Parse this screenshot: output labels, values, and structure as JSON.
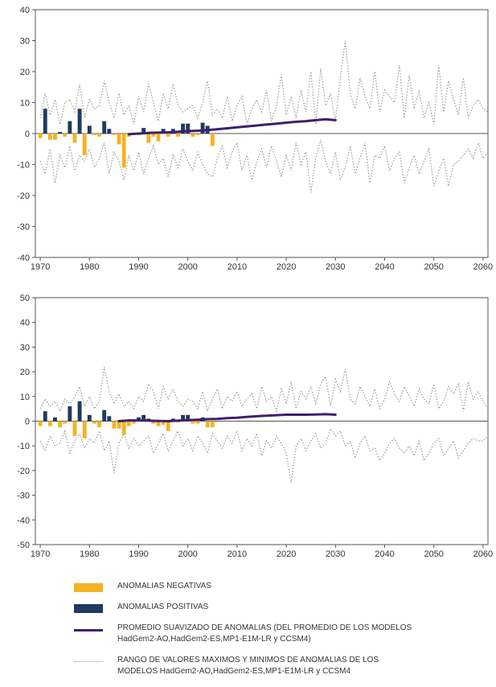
{
  "colors": {
    "negative": "#f4b324",
    "positive": "#1f3b5e",
    "smooth": "#3f1f6e",
    "range": "#9a9a9a",
    "axis": "#555555"
  },
  "legend": {
    "negative": "ANOMALIAS NEGATIVAS",
    "positive": "ANOMALIAS POSITIVAS",
    "smooth_line1": "PROMEDIO SUAVIZADO DE ANOMALIAS (DEL PROMEDIO DE LOS MODELOS",
    "smooth_line2": "HadGem2-AO,HadGem2-ES,MP1-E1M-LR y CCSM4)",
    "range_line1": "RANGO DE VALORES MAXIMOS Y MINIMOS DE ANOMALIAS DE LOS",
    "range_line2": "MODELOS HadGem2-AO,HadGem2-ES,MP1-E1M-LR y CCSM4"
  },
  "chart_data": [
    {
      "type": "bar",
      "xlim": [
        1969,
        2061
      ],
      "ylim": [
        -40,
        40
      ],
      "xticks": [
        1970,
        1980,
        1990,
        2000,
        2010,
        2020,
        2030,
        2040,
        2050,
        2060
      ],
      "yticks": [
        -40,
        -30,
        -20,
        -10,
        0,
        10,
        20,
        30,
        40
      ],
      "anomaly_years": [
        1970,
        1971,
        1972,
        1973,
        1974,
        1975,
        1976,
        1977,
        1978,
        1979,
        1980,
        1981,
        1982,
        1983,
        1984,
        1985,
        1986,
        1987,
        1988,
        1989,
        1990,
        1991,
        1992,
        1993,
        1994,
        1995,
        1996,
        1997,
        1998,
        1999,
        2000,
        2001,
        2002,
        2003,
        2004,
        2005
      ],
      "anomalies": [
        -1.5,
        8,
        -2,
        -2,
        0.5,
        -1,
        4,
        -3,
        8,
        -7,
        2.5,
        -0.5,
        -1,
        4,
        1.5,
        -0.5,
        -3.5,
        -11,
        -1,
        -0.5,
        -0.5,
        1.8,
        -3,
        -1,
        -2.5,
        1.5,
        -1,
        1.5,
        -1,
        3.2,
        3.2,
        -1,
        -0.5,
        3.5,
        2.5,
        -4
      ],
      "smooth": {
        "x": [
          1988,
          1990,
          1992,
          1994,
          1996,
          1998,
          2000,
          2002,
          2004,
          2006,
          2008,
          2010,
          2012,
          2014,
          2016,
          2018,
          2020,
          2022,
          2024,
          2026,
          2028,
          2030
        ],
        "y": [
          -0.2,
          0,
          0.2,
          0.3,
          0.4,
          0.6,
          0.8,
          0.9,
          1.1,
          1.4,
          1.7,
          2.0,
          2.3,
          2.6,
          2.9,
          3.2,
          3.5,
          3.8,
          4.0,
          4.3,
          4.6,
          4.3
        ]
      },
      "range_max": {
        "x": [
          1970,
          1971,
          1972,
          1973,
          1974,
          1975,
          1976,
          1977,
          1978,
          1979,
          1980,
          1981,
          1982,
          1983,
          1984,
          1985,
          1986,
          1987,
          1988,
          1989,
          1990,
          1991,
          1992,
          1993,
          1994,
          1995,
          1996,
          1997,
          1998,
          1999,
          2000,
          2001,
          2002,
          2003,
          2004,
          2005,
          2006,
          2007,
          2008,
          2009,
          2010,
          2011,
          2012,
          2013,
          2014,
          2015,
          2016,
          2017,
          2018,
          2019,
          2020,
          2021,
          2022,
          2023,
          2024,
          2025,
          2026,
          2027,
          2028,
          2029,
          2030,
          2031,
          2032,
          2033,
          2034,
          2035,
          2036,
          2037,
          2038,
          2039,
          2040,
          2041,
          2042,
          2043,
          2044,
          2045,
          2046,
          2047,
          2048,
          2049,
          2050,
          2051,
          2052,
          2053,
          2054,
          2055,
          2056,
          2057,
          2058,
          2059,
          2060,
          2061
        ],
        "y": [
          5,
          13,
          6,
          11,
          3,
          10,
          11,
          7,
          16,
          5,
          11,
          8,
          9,
          17,
          10,
          5,
          13,
          6,
          9,
          3,
          12,
          7,
          16,
          10,
          4,
          13,
          8,
          16,
          9,
          7,
          8,
          9,
          5,
          10,
          17,
          6,
          8,
          5,
          12,
          4,
          9,
          12,
          3,
          8,
          11,
          7,
          14,
          4,
          9,
          19,
          6,
          12,
          5,
          14,
          7,
          20,
          3,
          21,
          9,
          13,
          4,
          18,
          30,
          13,
          8,
          18,
          12,
          8,
          20,
          7,
          14,
          12,
          10,
          22,
          5,
          19,
          8,
          14,
          5,
          10,
          3,
          22,
          7,
          17,
          11,
          6,
          18,
          5,
          9,
          11,
          8,
          7
        ]
      },
      "range_min": {
        "x": [
          1970,
          1971,
          1972,
          1973,
          1974,
          1975,
          1976,
          1977,
          1978,
          1979,
          1980,
          1981,
          1982,
          1983,
          1984,
          1985,
          1986,
          1987,
          1988,
          1989,
          1990,
          1991,
          1992,
          1993,
          1994,
          1995,
          1996,
          1997,
          1998,
          1999,
          2000,
          2001,
          2002,
          2003,
          2004,
          2005,
          2006,
          2007,
          2008,
          2009,
          2010,
          2011,
          2012,
          2013,
          2014,
          2015,
          2016,
          2017,
          2018,
          2019,
          2020,
          2021,
          2022,
          2023,
          2024,
          2025,
          2026,
          2027,
          2028,
          2029,
          2030,
          2031,
          2032,
          2033,
          2034,
          2035,
          2036,
          2037,
          2038,
          2039,
          2040,
          2041,
          2042,
          2043,
          2044,
          2045,
          2046,
          2047,
          2048,
          2049,
          2050,
          2051,
          2052,
          2053,
          2054,
          2055,
          2056,
          2057,
          2058,
          2059,
          2060,
          2061
        ],
        "y": [
          -9,
          -13,
          -5,
          -16,
          -7,
          -11,
          -4,
          -12,
          -7,
          -9,
          -5,
          -11,
          -8,
          -3,
          -13,
          -6,
          -9,
          -15,
          -7,
          -12,
          -6,
          -13,
          -8,
          -4,
          -10,
          -8,
          -14,
          -7,
          -11,
          -5,
          -9,
          -12,
          -6,
          -10,
          -13,
          -14,
          -8,
          -4,
          -11,
          -6,
          -3,
          -12,
          -7,
          -15,
          -9,
          -5,
          -11,
          -4,
          -9,
          -14,
          -7,
          -12,
          -3,
          -10,
          -6,
          -19,
          -8,
          -2,
          -9,
          -13,
          -6,
          -15,
          -11,
          -4,
          -13,
          -8,
          -3,
          -16,
          -7,
          -8,
          -4,
          -12,
          -8,
          -6,
          -16,
          -11,
          -7,
          -13,
          -9,
          -5,
          -17,
          -12,
          -8,
          -17,
          -10,
          -9,
          -7,
          -5,
          -8,
          -3,
          -8,
          -6
        ]
      }
    },
    {
      "type": "bar",
      "xlim": [
        1969,
        2061
      ],
      "ylim": [
        -50,
        50
      ],
      "xticks": [
        1970,
        1980,
        1990,
        2000,
        2010,
        2020,
        2030,
        2040,
        2050,
        2060
      ],
      "yticks": [
        -50,
        -40,
        -30,
        -20,
        -10,
        0,
        10,
        20,
        30,
        40,
        50
      ],
      "anomaly_years": [
        1970,
        1971,
        1972,
        1973,
        1974,
        1975,
        1976,
        1977,
        1978,
        1979,
        1980,
        1981,
        1982,
        1983,
        1984,
        1985,
        1986,
        1987,
        1988,
        1989,
        1990,
        1991,
        1992,
        1993,
        1994,
        1995,
        1996,
        1997,
        1998,
        1999,
        2000,
        2001,
        2002,
        2003,
        2004,
        2005
      ],
      "anomalies": [
        -2,
        4,
        -2,
        1.5,
        -2.5,
        -1,
        6,
        -6,
        8,
        -7,
        2.5,
        -1,
        -2.5,
        4.5,
        2,
        -3,
        -3,
        -5.5,
        -2,
        -1,
        1.5,
        2.5,
        1,
        -1,
        -2,
        -1.5,
        -4,
        1,
        -0.5,
        2.5,
        2.5,
        -1,
        -1,
        1.5,
        -2.5,
        -2.5
      ],
      "smooth": {
        "x": [
          1986,
          1988,
          1990,
          1992,
          1994,
          1996,
          1998,
          2000,
          2002,
          2004,
          2006,
          2008,
          2010,
          2012,
          2014,
          2016,
          2018,
          2020,
          2022,
          2024,
          2026,
          2028,
          2030
        ],
        "y": [
          0,
          0.3,
          0.3,
          0.2,
          0.1,
          0,
          0.2,
          0.4,
          0.6,
          0.8,
          0.9,
          1.2,
          1.4,
          1.7,
          2.0,
          2.2,
          2.4,
          2.6,
          2.6,
          2.6,
          2.7,
          2.8,
          2.6
        ]
      },
      "range_max": {
        "x": [
          1970,
          1971,
          1972,
          1973,
          1974,
          1975,
          1976,
          1977,
          1978,
          1979,
          1980,
          1981,
          1982,
          1983,
          1984,
          1985,
          1986,
          1987,
          1988,
          1989,
          1990,
          1991,
          1992,
          1993,
          1994,
          1995,
          1996,
          1997,
          1998,
          1999,
          2000,
          2001,
          2002,
          2003,
          2004,
          2005,
          2006,
          2007,
          2008,
          2009,
          2010,
          2011,
          2012,
          2013,
          2014,
          2015,
          2016,
          2017,
          2018,
          2019,
          2020,
          2021,
          2022,
          2023,
          2024,
          2025,
          2026,
          2027,
          2028,
          2029,
          2030,
          2031,
          2032,
          2033,
          2034,
          2035,
          2036,
          2037,
          2038,
          2039,
          2040,
          2041,
          2042,
          2043,
          2044,
          2045,
          2046,
          2047,
          2048,
          2049,
          2050,
          2051,
          2052,
          2053,
          2054,
          2055,
          2056,
          2057,
          2058,
          2059,
          2060,
          2061
        ],
        "y": [
          5,
          9,
          6,
          8,
          4,
          9,
          7,
          10,
          14,
          6,
          10,
          5,
          8,
          22,
          12,
          7,
          11,
          6,
          8,
          5,
          10,
          8,
          15,
          12,
          5,
          14,
          9,
          13,
          8,
          6,
          9,
          8,
          5,
          12,
          4,
          9,
          13,
          5,
          10,
          8,
          12,
          6,
          9,
          11,
          5,
          14,
          8,
          10,
          4,
          13,
          7,
          16,
          5,
          12,
          9,
          14,
          7,
          15,
          18,
          6,
          17,
          12,
          21,
          9,
          7,
          14,
          10,
          6,
          13,
          5,
          9,
          16,
          11,
          8,
          14,
          10,
          6,
          13,
          9,
          7,
          15,
          5,
          8,
          14,
          11,
          15,
          4,
          16,
          9,
          12,
          8,
          5
        ]
      },
      "range_min": {
        "x": [
          1970,
          1971,
          1972,
          1973,
          1974,
          1975,
          1976,
          1977,
          1978,
          1979,
          1980,
          1981,
          1982,
          1983,
          1984,
          1985,
          1986,
          1987,
          1988,
          1989,
          1990,
          1991,
          1992,
          1993,
          1994,
          1995,
          1996,
          1997,
          1998,
          1999,
          2000,
          2001,
          2002,
          2003,
          2004,
          2005,
          2006,
          2007,
          2008,
          2009,
          2010,
          2011,
          2012,
          2013,
          2014,
          2015,
          2016,
          2017,
          2018,
          2019,
          2020,
          2021,
          2022,
          2023,
          2024,
          2025,
          2026,
          2027,
          2028,
          2029,
          2030,
          2031,
          2032,
          2033,
          2034,
          2035,
          2036,
          2037,
          2038,
          2039,
          2040,
          2041,
          2042,
          2043,
          2044,
          2045,
          2046,
          2047,
          2048,
          2049,
          2050,
          2051,
          2052,
          2053,
          2054,
          2055,
          2056,
          2057,
          2058,
          2059,
          2060,
          2061
        ],
        "y": [
          -8,
          -12,
          -6,
          -10,
          -9,
          -4,
          -13,
          -8,
          -5,
          -11,
          -7,
          -9,
          -4,
          -12,
          -8,
          -21,
          -9,
          -5,
          -11,
          -7,
          -10,
          -8,
          -6,
          -13,
          -9,
          -5,
          -12,
          -8,
          -4,
          -10,
          -7,
          -12,
          -6,
          -9,
          -13,
          -5,
          -8,
          -11,
          -6,
          -9,
          -4,
          -12,
          -7,
          -10,
          -5,
          -14,
          -8,
          -11,
          -6,
          -9,
          -13,
          -25,
          -10,
          -7,
          -12,
          -8,
          -5,
          -11,
          -9,
          -3,
          -6,
          -4,
          -10,
          -8,
          -15,
          -9,
          -6,
          -12,
          -11,
          -16,
          -13,
          -9,
          -7,
          -11,
          -13,
          -10,
          -14,
          -8,
          -16,
          -13,
          -9,
          -7,
          -14,
          -11,
          -8,
          -15,
          -12,
          -9,
          -7,
          -8,
          -8,
          -6
        ]
      }
    }
  ]
}
